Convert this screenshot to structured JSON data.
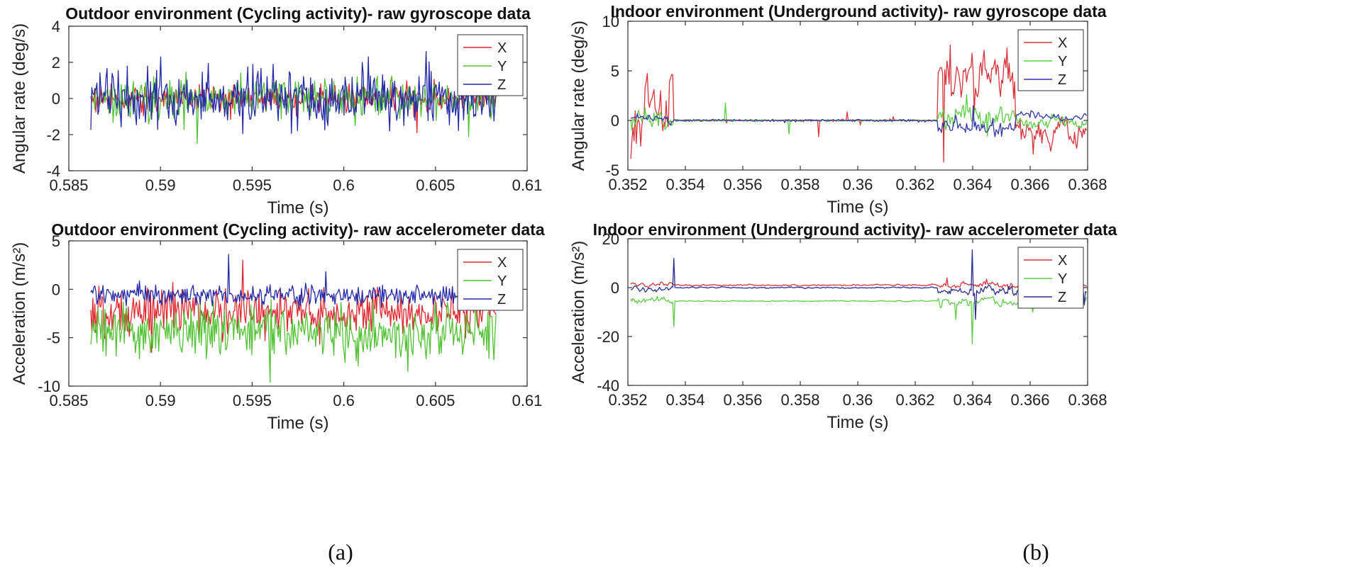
{
  "chart_data": [
    {
      "type": "line",
      "panel": "a-top",
      "title": "Outdoor environment (Cycling activity)- raw gyroscope data",
      "xlabel": "Time (s)",
      "ylabel": "Angular rate (deg/s)",
      "xlim": [
        0.585,
        0.61
      ],
      "ylim": [
        -4,
        4
      ],
      "xticks": [
        0.585,
        0.59,
        0.595,
        0.6,
        0.605,
        0.61
      ],
      "xtick_labels": [
        "0.585",
        "0.59",
        "0.595",
        "0.6",
        "0.605",
        "0.61"
      ],
      "yticks": [
        -4,
        -2,
        0,
        2,
        4
      ],
      "ytick_labels": [
        "-4",
        "-2",
        "0",
        "2",
        "4"
      ],
      "legend": "top-right",
      "grid": false,
      "series": [
        {
          "name": "X",
          "color": "#e0262f",
          "x_range": [
            0.5862,
            0.6083
          ],
          "center": 0.0,
          "noise": 0.35,
          "points": 400,
          "extremes": [
            [
              0.604,
              -1.9
            ]
          ]
        },
        {
          "name": "Y",
          "color": "#52c234",
          "x_range": [
            0.5862,
            0.6083
          ],
          "center": 0.0,
          "noise": 0.55,
          "points": 400,
          "extremes": [
            [
              0.592,
              -2.5
            ],
            [
              0.6068,
              -2.1
            ]
          ]
        },
        {
          "name": "Z",
          "color": "#2429a8",
          "x_range": [
            0.5862,
            0.6083
          ],
          "center": 0.0,
          "noise": 0.75,
          "points": 400,
          "extremes": [
            [
              0.59,
              2.3
            ],
            [
              0.6045,
              2.6
            ],
            [
              0.601,
              2.0
            ]
          ]
        }
      ]
    },
    {
      "type": "line",
      "panel": "a-bottom",
      "title": "Outdoor environment (Cycling activity)- raw accelerometer data",
      "xlabel": "Time (s)",
      "ylabel": "Acceleration (m/s²)",
      "xlim": [
        0.585,
        0.61
      ],
      "ylim": [
        -10,
        5
      ],
      "xticks": [
        0.585,
        0.59,
        0.595,
        0.6,
        0.605,
        0.61
      ],
      "xtick_labels": [
        "0.585",
        "0.59",
        "0.595",
        "0.6",
        "0.605",
        "0.61"
      ],
      "yticks": [
        -10,
        -5,
        0,
        5
      ],
      "ytick_labels": [
        "-10",
        "-5",
        "0",
        "5"
      ],
      "legend": "top-right",
      "grid": false,
      "series": [
        {
          "name": "X",
          "color": "#e0262f",
          "x_range": [
            0.5862,
            0.6083
          ],
          "center": -2.3,
          "noise": 1.1,
          "points": 400,
          "extremes": [
            [
              0.5945,
              3.0
            ],
            [
              0.5895,
              -6.5
            ]
          ]
        },
        {
          "name": "Y",
          "color": "#52c234",
          "x_range": [
            0.5862,
            0.6083
          ],
          "center": -4.3,
          "noise": 1.3,
          "points": 400,
          "extremes": [
            [
              0.596,
              -9.6
            ],
            [
              0.6035,
              -8.5
            ]
          ]
        },
        {
          "name": "Z",
          "color": "#2429a8",
          "x_range": [
            0.5862,
            0.6083
          ],
          "center": -0.6,
          "noise": 0.55,
          "points": 400,
          "extremes": [
            [
              0.5937,
              3.6
            ],
            [
              0.599,
              1.8
            ]
          ]
        }
      ]
    },
    {
      "type": "line",
      "panel": "b-top",
      "title": "Indoor environment (Underground activity)- raw gyroscope data",
      "xlabel": "Time (s)",
      "ylabel": "Angular rate (deg/s)",
      "xlim": [
        0.352,
        0.368
      ],
      "ylim": [
        -5,
        10
      ],
      "xticks": [
        0.352,
        0.354,
        0.356,
        0.358,
        0.36,
        0.362,
        0.364,
        0.366,
        0.368
      ],
      "xtick_labels": [
        "0.352",
        "0.354",
        "0.356",
        "0.358",
        "0.36",
        "0.362",
        "0.364",
        "0.366",
        "0.368"
      ],
      "yticks": [
        -5,
        0,
        5,
        10
      ],
      "ytick_labels": [
        "-5",
        "0",
        "5",
        "10"
      ],
      "legend": "top-right",
      "grid": false,
      "series": [
        {
          "name": "X",
          "color": "#d9343c",
          "segments": [
            [
              0.3521,
              0.3536,
              0.0,
              3.5
            ],
            [
              0.3536,
              0.3628,
              0.0,
              0.05
            ],
            [
              0.3628,
              0.3655,
              4.0,
              2.5
            ],
            [
              0.3655,
              0.368,
              -1.2,
              1.5
            ]
          ],
          "extremes": [
            [
              0.3632,
              7.6
            ],
            [
              0.3652,
              7.3
            ],
            [
              0.363,
              -4.2
            ],
            [
              0.3661,
              -3.4
            ]
          ]
        },
        {
          "name": "Y",
          "color": "#5ccd45",
          "segments": [
            [
              0.3521,
              0.3536,
              0.0,
              1.0
            ],
            [
              0.3536,
              0.3628,
              0.0,
              0.05
            ],
            [
              0.3628,
              0.3655,
              0.6,
              1.2
            ],
            [
              0.3655,
              0.368,
              -0.3,
              0.6
            ]
          ],
          "extremes": [
            [
              0.3638,
              2.6
            ],
            [
              0.3645,
              -1.6
            ]
          ]
        },
        {
          "name": "Z",
          "color": "#3137a8",
          "segments": [
            [
              0.3521,
              0.3536,
              0.0,
              0.4
            ],
            [
              0.3536,
              0.3628,
              0.0,
              0.05
            ],
            [
              0.3628,
              0.3655,
              -0.6,
              0.8
            ],
            [
              0.3655,
              0.368,
              0.4,
              0.4
            ]
          ],
          "extremes": [
            [
              0.364,
              1.5
            ],
            [
              0.365,
              -1.6
            ]
          ]
        }
      ]
    },
    {
      "type": "line",
      "panel": "b-bottom",
      "title": "Indoor environment (Underground activity)- raw accelerometer data",
      "xlabel": "Time (s)",
      "ylabel": "Acceleration (m/s²)",
      "xlim": [
        0.352,
        0.368
      ],
      "ylim": [
        -40,
        20
      ],
      "xticks": [
        0.352,
        0.354,
        0.356,
        0.358,
        0.36,
        0.362,
        0.364,
        0.366,
        0.368
      ],
      "xtick_labels": [
        "0.352",
        "0.354",
        "0.356",
        "0.358",
        "0.36",
        "0.362",
        "0.364",
        "0.366",
        "0.368"
      ],
      "yticks": [
        -40,
        -20,
        0,
        20
      ],
      "ytick_labels": [
        "-40",
        "-20",
        "0",
        "20"
      ],
      "legend": "top-right",
      "grid": false,
      "series": [
        {
          "name": "X",
          "color": "#d9343c",
          "segments": [
            [
              0.3521,
              0.3536,
              1.5,
              1.0
            ],
            [
              0.3536,
              0.3628,
              1.0,
              0.3
            ],
            [
              0.3628,
              0.368,
              1.0,
              1.2
            ]
          ],
          "extremes": [
            [
              0.3631,
              4.0
            ],
            [
              0.3645,
              3.5
            ]
          ]
        },
        {
          "name": "Y",
          "color": "#5ccd45",
          "segments": [
            [
              0.3521,
              0.3536,
              -5.0,
              1.2
            ],
            [
              0.3536,
              0.3628,
              -5.5,
              0.2
            ],
            [
              0.3628,
              0.368,
              -6.0,
              2.0
            ]
          ],
          "extremes": [
            [
              0.3536,
              -16.0
            ],
            [
              0.364,
              -23.0
            ],
            [
              0.3634,
              -13.0
            ],
            [
              0.3661,
              -10.0
            ]
          ]
        },
        {
          "name": "Z",
          "color": "#2a2f8f",
          "segments": [
            [
              0.3521,
              0.3536,
              -0.5,
              1.0
            ],
            [
              0.3536,
              0.3628,
              0.0,
              0.3
            ],
            [
              0.3628,
              0.368,
              -1.0,
              2.0
            ]
          ],
          "extremes": [
            [
              0.3536,
              12.0
            ],
            [
              0.364,
              15.5
            ],
            [
              0.3641,
              -13.0
            ],
            [
              0.3679,
              -7.0
            ]
          ]
        }
      ]
    }
  ],
  "captions": [
    "(a)",
    "(b)"
  ]
}
